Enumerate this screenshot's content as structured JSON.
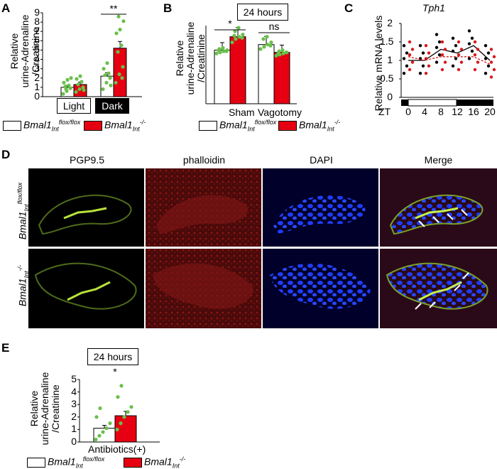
{
  "colors": {
    "ctrl": "#ffffff",
    "ko": "#e60012",
    "dot": "#6abf4b",
    "black": "#000000",
    "red": "#d7191c"
  },
  "legend": {
    "ctrl_label": "Bmal1",
    "ctrl_sub": "Int",
    "ctrl_sup": "flox/flox",
    "ko_label": "Bmal1",
    "ko_sub": "Int",
    "ko_sup": "-/-"
  },
  "panelA": {
    "letter": "A",
    "ylabel_lines": [
      "Relative",
      "urine-Adrenaline",
      "/Creatinine"
    ],
    "sig": "**",
    "chart_data": {
      "type": "bar",
      "categories": [
        "Light",
        "Dark"
      ],
      "ylim": [
        0,
        9
      ],
      "yticks": [
        0,
        1,
        2,
        3,
        4,
        5,
        6,
        7,
        8,
        9
      ],
      "series": [
        {
          "name": "Bmal1Int flox/flox",
          "values": [
            1.0,
            2.2
          ]
        },
        {
          "name": "Bmal1Int -/-",
          "values": [
            1.3,
            5.2
          ]
        }
      ],
      "points": [
        [
          [
            0.3,
            0.6,
            0.9,
            1.1,
            1.2,
            1.5,
            1.8,
            2.0,
            0.8
          ],
          [
            0.5,
            0.8,
            1.0,
            1.3,
            1.6,
            1.9,
            2.2,
            0.7
          ]
        ],
        [
          [
            0.8,
            1.5,
            2.0,
            2.3,
            2.5,
            3.0,
            3.6,
            1.2
          ],
          [
            1.5,
            2.4,
            3.2,
            4.8,
            5.5,
            6.8,
            7.2,
            8.1,
            8.6,
            2.0
          ]
        ]
      ]
    }
  },
  "panelB": {
    "letter": "B",
    "title": "24 hours",
    "ylabel_lines": [
      "Relative",
      "urine-Adrenaline",
      "/Creatinine"
    ],
    "sig": [
      "*",
      "ns"
    ],
    "chart_data": {
      "type": "bar",
      "categories": [
        "Sham",
        "Vagotomy"
      ],
      "ylim": [
        0,
        7
      ],
      "series": [
        {
          "name": "Bmal1Int flox/flox",
          "values": [
            4.8,
            5.3
          ]
        },
        {
          "name": "Bmal1Int -/-",
          "values": [
            6.0,
            4.6
          ]
        }
      ],
      "points": [
        [
          [
            4.5,
            4.6,
            4.7,
            4.8,
            4.9,
            5.0,
            4.7,
            4.8
          ],
          [
            5.5,
            5.8,
            6.0,
            6.2,
            6.5,
            6.8,
            5.9,
            6.1
          ]
        ],
        [
          [
            4.9,
            5.1,
            5.3,
            5.5,
            5.8,
            6.0,
            5.2
          ],
          [
            4.3,
            4.4,
            4.5,
            4.6,
            4.7,
            4.8,
            4.6,
            4.5
          ]
        ]
      ]
    }
  },
  "panelC": {
    "letter": "C",
    "title": "Tph1",
    "ylabel": "Relative mRNA levels",
    "xlabel": "ZT",
    "chart_data": {
      "type": "line",
      "x": [
        0,
        4,
        8,
        12,
        16,
        20
      ],
      "ylim": [
        0,
        2
      ],
      "yticks": [
        "0",
        "0.5",
        "1",
        "1.5",
        "2"
      ],
      "series": [
        {
          "name": "Bmal1Int flox/flox",
          "values": [
            1.0,
            1.0,
            1.3,
            1.2,
            1.4,
            1.0
          ]
        },
        {
          "name": "Bmal1Int -/-",
          "values": [
            1.1,
            1.0,
            1.1,
            1.1,
            1.1,
            0.9
          ]
        }
      ]
    }
  },
  "panelD": {
    "letter": "D",
    "columns": [
      "PGP9.5",
      "phalloidin",
      "DAPI",
      "Merge"
    ],
    "rows": [
      {
        "label": "Bmal1",
        "sub": "Int",
        "sup": "flox/flox"
      },
      {
        "label": "Bmal1",
        "sub": "Int",
        "sup": "-/-"
      }
    ]
  },
  "panelE": {
    "letter": "E",
    "title": "24 hours",
    "ylabel_lines": [
      "Relative",
      "urine-Adrenaline",
      "/Creatinine"
    ],
    "sig": "*",
    "xlabel": "Antibiotics(+)",
    "chart_data": {
      "type": "bar",
      "categories": [
        "Antibiotics(+)"
      ],
      "ylim": [
        0,
        5
      ],
      "yticks": [
        0,
        1,
        2,
        3,
        4,
        5
      ],
      "series": [
        {
          "name": "Bmal1Int flox/flox",
          "values": [
            1.1
          ]
        },
        {
          "name": "Bmal1Int -/-",
          "values": [
            2.1
          ]
        }
      ],
      "points": [
        [
          [
            0.2,
            0.5,
            0.8,
            1.1,
            1.5,
            2.0,
            2.7
          ],
          [
            1.0,
            1.5,
            2.0,
            2.4,
            2.8,
            3.6,
            4.5
          ]
        ]
      ]
    }
  }
}
